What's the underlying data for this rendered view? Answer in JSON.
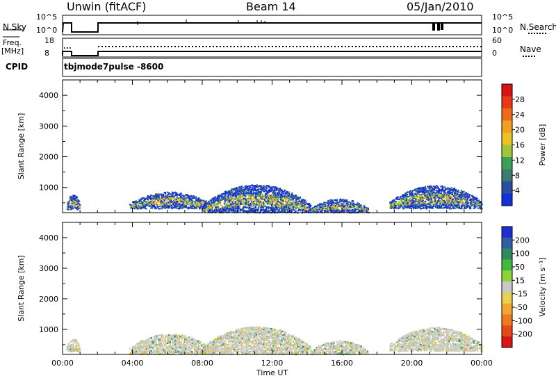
{
  "header": {
    "station": "Unwin (fitACF)",
    "beam": "Beam 14",
    "date": "05/Jan/2010"
  },
  "panels": {
    "nsky_label": "N.Sky",
    "nsearch_label": "N.Search",
    "freq_label": "Freq.",
    "freq_unit": "[MHz]",
    "nave_label": "Nave",
    "cpid_label": "CPID",
    "cpid_value": "tbjmode7pulse  -8600",
    "nsky_ticks": [
      "10^5",
      "10^0"
    ],
    "nsearch_ticks": [
      "10^5",
      "10^0"
    ],
    "freq_ticks": [
      "18",
      "8"
    ],
    "nave_ticks": [
      "60",
      "0"
    ]
  },
  "chart_data": [
    {
      "type": "heatmap",
      "name": "power",
      "xlabel": "Time UT",
      "ylabel": "Slant Range [km]",
      "x_ticks": [
        "00:00",
        "04:00",
        "08:00",
        "12:00",
        "16:00",
        "20:00",
        "00:00"
      ],
      "y_ticks": [
        1000,
        2000,
        3000,
        4000
      ],
      "xlim": [
        0,
        24
      ],
      "ylim": [
        180,
        4500
      ],
      "colorbar": {
        "label": "Power [dB]",
        "ticks": [
          4,
          8,
          12,
          16,
          20,
          24,
          28
        ],
        "colors": [
          "#1530d8",
          "#2a4fa0",
          "#3d7a70",
          "#3f9e5a",
          "#a0c63a",
          "#e8c323",
          "#f0a020",
          "#ef6a1c",
          "#e83a18",
          "#d81414"
        ]
      },
      "echo_regions": [
        {
          "t_start": 0.2,
          "t_end": 1.0,
          "r_min": 300,
          "r_max": 800
        },
        {
          "t_start": 3.8,
          "t_end": 8.5,
          "r_min": 330,
          "r_max": 870
        },
        {
          "t_start": 8.0,
          "t_end": 14.2,
          "r_min": 200,
          "r_max": 1110
        },
        {
          "t_start": 14.2,
          "t_end": 17.5,
          "r_min": 200,
          "r_max": 650
        },
        {
          "t_start": 18.7,
          "t_end": 24.0,
          "r_min": 330,
          "r_max": 1080
        }
      ]
    },
    {
      "type": "heatmap",
      "name": "velocity",
      "xlabel": "Time UT",
      "ylabel": "Slant Range [km]",
      "x_ticks": [
        "00:00",
        "04:00",
        "08:00",
        "12:00",
        "16:00",
        "20:00",
        "00:00"
      ],
      "y_ticks": [
        1000,
        2000,
        3000,
        4000
      ],
      "xlim": [
        0,
        24
      ],
      "ylim": [
        180,
        4500
      ],
      "colorbar": {
        "label": "Velocity [m s⁻¹]",
        "ticks": [
          "200",
          "100",
          "50",
          "15",
          "-15",
          "-50",
          "-100",
          "-200"
        ],
        "colors": [
          "#1d2fcf",
          "#2f5fa3",
          "#2f8a60",
          "#44b83a",
          "#8cd43a",
          "#c8c8c8",
          "#e8d050",
          "#f0a830",
          "#ef7a20",
          "#e84818",
          "#d81414"
        ]
      },
      "echo_regions": [
        {
          "t_start": 0.2,
          "t_end": 1.0,
          "r_min": 300,
          "r_max": 700
        },
        {
          "t_start": 3.8,
          "t_end": 8.5,
          "r_min": 200,
          "r_max": 870
        },
        {
          "t_start": 8.0,
          "t_end": 14.2,
          "r_min": 200,
          "r_max": 1110
        },
        {
          "t_start": 14.2,
          "t_end": 17.5,
          "r_min": 200,
          "r_max": 650
        },
        {
          "t_start": 18.7,
          "t_end": 24.0,
          "r_min": 300,
          "r_max": 1080
        }
      ]
    }
  ]
}
